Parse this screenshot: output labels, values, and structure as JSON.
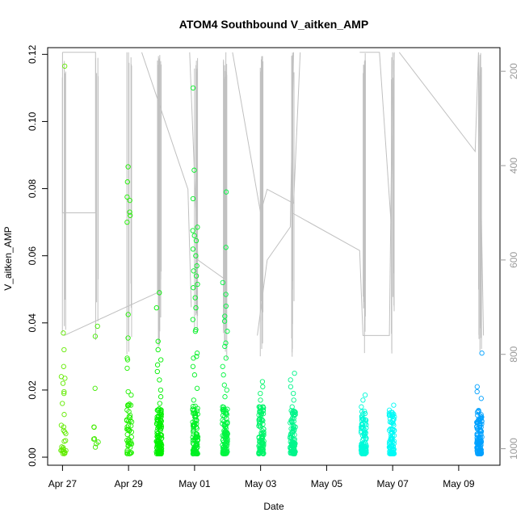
{
  "chart_data": {
    "type": "scatter",
    "title": "ATOM4 Southbound V_aitken_AMP",
    "xlabel": "Date",
    "ylabel": "V_aitken_AMP",
    "x_ticks": [
      "Apr 27",
      "Apr 29",
      "May 01",
      "May 03",
      "May 05",
      "May 07",
      "May 09"
    ],
    "x_tick_days": [
      0,
      2,
      4,
      6,
      8,
      10,
      12
    ],
    "xlim_days": [
      -0.45,
      13.25
    ],
    "ylim": [
      -0.0024,
      0.122
    ],
    "y_ticks": [
      0.0,
      0.02,
      0.04,
      0.06,
      0.08,
      0.1,
      0.12
    ],
    "y_tick_labels": [
      "0.00",
      "0.02",
      "0.04",
      "0.06",
      "0.08",
      "0.10",
      "0.12"
    ],
    "y2_ticks": [
      200,
      400,
      600,
      800,
      1000
    ],
    "y2lim": [
      150,
      1035
    ],
    "point_color_scale": "green-to-blue by date",
    "overlay_line_color": "#c0c0c0",
    "clusters": [
      {
        "day": 0.0,
        "count": 30,
        "values": [
          0.1165,
          0.037,
          0.032,
          0.027,
          0.024,
          0.0235,
          0.022,
          0.0195,
          0.019,
          0.016,
          0.0095,
          0.009,
          0.008,
          0.0075,
          0.0025,
          0.002
        ]
      },
      {
        "day": 1.0,
        "count": 10,
        "values": [
          0.039,
          0.036,
          0.0205,
          0.009,
          0.0055,
          0.0045,
          0.004,
          0.003
        ]
      },
      {
        "day": 2.0,
        "count": 60,
        "values": [
          0.0865,
          0.082,
          0.0775,
          0.0765,
          0.073,
          0.072,
          0.07,
          0.0425,
          0.0355,
          0.0295,
          0.029,
          0.0265,
          0.0195,
          0.0185,
          0.009,
          0.008,
          0.006,
          0.005,
          0.004,
          0.003
        ]
      },
      {
        "day": 2.9,
        "count": 130,
        "values": [
          0.049,
          0.0445,
          0.0345,
          0.032,
          0.029,
          0.0275,
          0.0255,
          0.023,
          0.02,
          0.018,
          0.016,
          0.014,
          0.012,
          0.011,
          0.01,
          0.009,
          0.008,
          0.007,
          0.006,
          0.005,
          0.004,
          0.003,
          0.002
        ]
      },
      {
        "day": 4.0,
        "count": 120,
        "values": [
          0.11,
          0.0855,
          0.077,
          0.0685,
          0.0675,
          0.066,
          0.0645,
          0.062,
          0.06,
          0.057,
          0.0555,
          0.054,
          0.0515,
          0.0505,
          0.0475,
          0.0445,
          0.041,
          0.038,
          0.0375,
          0.031,
          0.03,
          0.0295,
          0.027,
          0.0245,
          0.0205,
          0.017,
          0.0125,
          0.01,
          0.009,
          0.006,
          0.0035,
          0.003
        ]
      },
      {
        "day": 4.9,
        "count": 120,
        "values": [
          0.079,
          0.0625,
          0.052,
          0.0485,
          0.045,
          0.042,
          0.0405,
          0.0375,
          0.034,
          0.033,
          0.0295,
          0.027,
          0.0245,
          0.0215,
          0.02,
          0.018,
          0.015,
          0.013,
          0.011,
          0.009,
          0.007,
          0.005,
          0.003,
          0.002
        ]
      },
      {
        "day": 6.0,
        "count": 100,
        "values": [
          0.0225,
          0.021,
          0.019,
          0.017,
          0.015,
          0.013,
          0.011,
          0.009,
          0.007,
          0.005,
          0.003
        ]
      },
      {
        "day": 6.95,
        "count": 100,
        "values": [
          0.025,
          0.023,
          0.021,
          0.019,
          0.017,
          0.015,
          0.013,
          0.011,
          0.009,
          0.007,
          0.005,
          0.003,
          0.001
        ]
      },
      {
        "day": 9.1,
        "count": 110,
        "values": [
          0.0185,
          0.017,
          0.015,
          0.013,
          0.011,
          0.009,
          0.007,
          0.005,
          0.003,
          0.001
        ]
      },
      {
        "day": 9.95,
        "count": 90,
        "values": [
          0.0155,
          0.014,
          0.012,
          0.01,
          0.008,
          0.006,
          0.004,
          0.002,
          0.001
        ]
      },
      {
        "day": 12.6,
        "count": 120,
        "values": [
          0.031,
          0.021,
          0.0195,
          0.0175,
          0.0125,
          0.0105,
          0.009,
          0.008,
          0.007,
          0.006,
          0.005,
          0.004,
          0.003,
          0.002,
          0.001
        ]
      }
    ],
    "overlay_segments": [
      {
        "x": [
          0.0,
          0.0,
          1.0,
          1.0,
          0.0
        ],
        "y2": [
          160,
          500,
          500,
          160,
          160
        ]
      },
      {
        "x": [
          0.05,
          2.85
        ],
        "y2": [
          760,
          670
        ]
      },
      {
        "x": [
          1.95,
          1.95
        ],
        "y2": [
          160,
          800
        ]
      },
      {
        "x": [
          2.0,
          2.0
        ],
        "y2": [
          160,
          760
        ]
      },
      {
        "x": [
          2.4,
          3.8,
          3.9
        ],
        "y2": [
          160,
          450,
          700
        ]
      },
      {
        "x": [
          3.85,
          4.1,
          4.9,
          4.95
        ],
        "y2": [
          160,
          600,
          640,
          160
        ]
      },
      {
        "x": [
          5.15,
          6.0,
          6.2,
          7.0,
          7.2
        ],
        "y2": [
          160,
          500,
          450,
          480,
          160
        ]
      },
      {
        "x": [
          5.9,
          6.2,
          6.9,
          7.0
        ],
        "y2": [
          760,
          600,
          530,
          160
        ]
      },
      {
        "x": [
          6.95,
          9.0,
          9.1,
          9.9,
          10.0
        ],
        "y2": [
          500,
          580,
          760,
          760,
          160
        ]
      },
      {
        "x": [
          9.0,
          9.6,
          9.95,
          10.05
        ],
        "y2": [
          160,
          160,
          520,
          160
        ]
      },
      {
        "x": [
          10.2,
          12.5,
          12.6,
          12.75
        ],
        "y2": [
          160,
          370,
          160,
          760
        ]
      }
    ]
  }
}
